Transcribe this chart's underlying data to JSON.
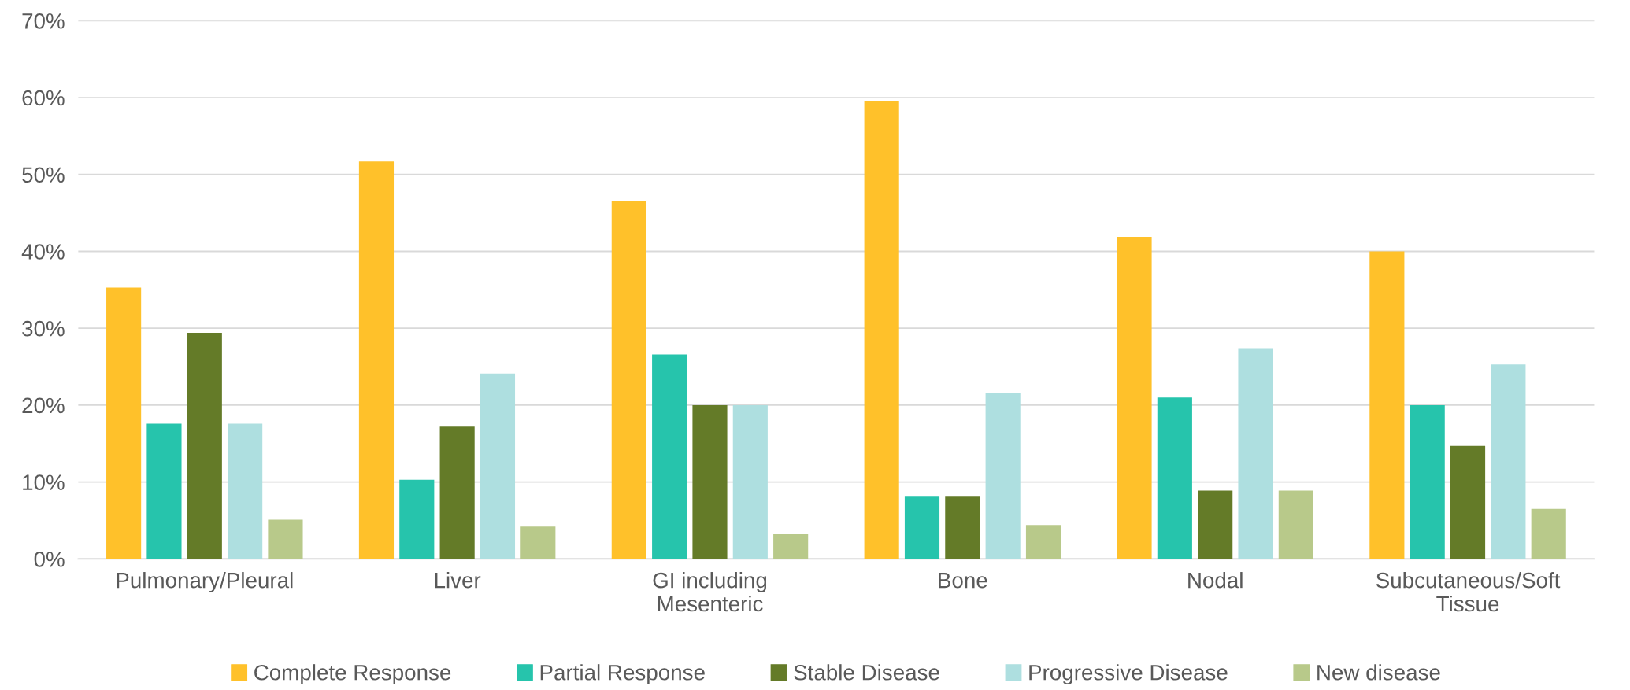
{
  "chart_data": {
    "type": "bar",
    "categories": [
      "Pulmonary/Pleural",
      "Liver",
      "GI including\nMesenteric",
      "Bone",
      "Nodal",
      "Subcutaneous/Soft\nTissue"
    ],
    "series": [
      {
        "name": "Complete Response",
        "color": "#ffc12a",
        "values": [
          35.3,
          51.7,
          46.6,
          59.5,
          41.9,
          40.0
        ]
      },
      {
        "name": "Partial Response",
        "color": "#26c4ac",
        "values": [
          17.6,
          10.3,
          26.6,
          8.1,
          21.0,
          20.0
        ]
      },
      {
        "name": "Stable Disease",
        "color": "#647b28",
        "values": [
          29.4,
          17.2,
          20.0,
          8.1,
          8.9,
          14.7
        ]
      },
      {
        "name": "Progressive Disease",
        "color": "#aedfe0",
        "values": [
          17.6,
          24.1,
          20.0,
          21.6,
          27.4,
          25.3
        ]
      },
      {
        "name": "New disease",
        "color": "#b8c98a",
        "values": [
          5.1,
          4.2,
          3.2,
          4.4,
          8.9,
          6.5
        ]
      }
    ],
    "ylim": [
      0,
      70
    ],
    "yticks": [
      {
        "value": 0,
        "label": "0%"
      },
      {
        "value": 10,
        "label": "10%"
      },
      {
        "value": 20,
        "label": "20%"
      },
      {
        "value": 30,
        "label": "30%"
      },
      {
        "value": 40,
        "label": "40%"
      },
      {
        "value": 50,
        "label": "50%"
      },
      {
        "value": 60,
        "label": "60%"
      },
      {
        "value": 70,
        "label": "70%"
      }
    ],
    "grid": "y",
    "legend": "bottom"
  }
}
